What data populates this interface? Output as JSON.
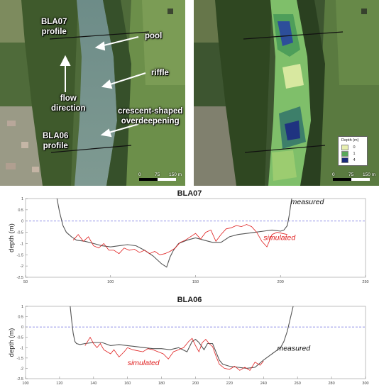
{
  "map_left": {
    "labels": {
      "bla07_profile": "BLA07\nprofile",
      "pool": "pool",
      "riffle": "riffle",
      "flow_direction": "flow\ndirection",
      "crescent": "crescent-shaped\noverdeepening",
      "bla06_profile": "BLA06\nprofile"
    },
    "scale": [
      "0",
      "75",
      "150 m"
    ]
  },
  "map_right": {
    "legend_title": "Depth (m)",
    "legend_items": [
      {
        "label": "0",
        "color": "#e8f0b0"
      },
      {
        "label": "1",
        "color": "#5aa85a"
      },
      {
        "label": "4",
        "color": "#1b2a7a"
      }
    ],
    "scale": [
      "0",
      "75",
      "150 m"
    ]
  },
  "chart_data": [
    {
      "type": "line",
      "title": "BLA07",
      "ylabel": "depth (m)",
      "xlim": [
        50,
        250
      ],
      "ylim": [
        -2.5,
        1
      ],
      "xticks": [
        "50",
        "100",
        "150",
        "200",
        "250"
      ],
      "yticks": [
        "1",
        "0.5",
        "0",
        "-0.5",
        "-1",
        "-1.5",
        "-2",
        "-2.5"
      ],
      "reference_line": 0,
      "series": [
        {
          "name": "measured",
          "color": "#555555",
          "x": [
            68,
            70,
            72,
            74,
            77,
            80,
            85,
            90,
            95,
            100,
            105,
            110,
            115,
            120,
            125,
            130,
            133,
            135,
            137,
            140,
            145,
            150,
            155,
            160,
            165,
            170,
            175,
            180,
            185,
            190,
            195,
            200,
            202,
            204,
            205,
            206,
            207
          ],
          "y": [
            1.2,
            0.4,
            -0.2,
            -0.5,
            -0.7,
            -0.85,
            -0.9,
            -1.0,
            -1.1,
            -1.15,
            -1.1,
            -1.05,
            -1.1,
            -1.3,
            -1.55,
            -1.9,
            -2.05,
            -1.6,
            -1.3,
            -1.0,
            -0.85,
            -0.75,
            -0.85,
            -0.95,
            -0.95,
            -0.7,
            -0.6,
            -0.55,
            -0.5,
            -0.45,
            -0.4,
            -0.45,
            -0.4,
            -0.2,
            0.2,
            0.7,
            1.2
          ]
        },
        {
          "name": "simulated",
          "color": "#e02020",
          "x": [
            78,
            81,
            84,
            87,
            90,
            93,
            96,
            99,
            102,
            105,
            108,
            111,
            114,
            117,
            120,
            123,
            126,
            129,
            132,
            135,
            138,
            141,
            144,
            147,
            150,
            153,
            156,
            159,
            162,
            165,
            168,
            171,
            174,
            177,
            180,
            183,
            186,
            189,
            192,
            195,
            198,
            201,
            204
          ],
          "y": [
            -0.85,
            -0.6,
            -0.9,
            -0.7,
            -1.1,
            -1.2,
            -1.0,
            -1.3,
            -1.3,
            -1.45,
            -1.2,
            -1.3,
            -1.25,
            -1.4,
            -1.3,
            -1.45,
            -1.35,
            -1.5,
            -1.45,
            -1.35,
            -1.2,
            -0.95,
            -0.85,
            -0.7,
            -0.55,
            -0.8,
            -0.5,
            -0.4,
            -0.9,
            -0.6,
            -0.35,
            -0.3,
            -0.2,
            -0.25,
            -0.15,
            -0.25,
            -0.5,
            -0.9,
            -1.15,
            -0.6,
            -0.5,
            -0.55,
            -0.6
          ]
        }
      ],
      "annotations": [
        "measured",
        "simulated"
      ]
    },
    {
      "type": "line",
      "title": "BLA06",
      "ylabel": "depth (m)",
      "xlim": [
        100,
        300
      ],
      "ylim": [
        -2.5,
        1
      ],
      "xticks": [
        "100",
        "120",
        "140",
        "160",
        "180",
        "200",
        "220",
        "240",
        "260",
        "280",
        "300"
      ],
      "yticks": [
        "1",
        "0.5",
        "0",
        "-0.5",
        "-1",
        "-1.5",
        "-2",
        "-2.5"
      ],
      "reference_line": 0,
      "series": [
        {
          "name": "measured",
          "color": "#555555",
          "x": [
            126,
            127,
            128,
            129,
            130,
            132,
            135,
            140,
            145,
            150,
            155,
            160,
            165,
            170,
            175,
            180,
            185,
            190,
            195,
            198,
            200,
            202,
            205,
            207,
            210,
            212,
            214,
            216,
            220,
            225,
            230,
            235,
            240,
            245,
            250,
            252,
            254,
            256,
            258
          ],
          "y": [
            1.2,
            0.4,
            -0.3,
            -0.7,
            -0.8,
            -0.85,
            -0.8,
            -0.75,
            -0.75,
            -0.9,
            -0.85,
            -0.9,
            -0.95,
            -1.0,
            -1.05,
            -1.05,
            -1.1,
            -1.0,
            -1.2,
            -0.7,
            -0.6,
            -0.75,
            -1.1,
            -0.8,
            -0.8,
            -1.2,
            -1.6,
            -1.8,
            -1.9,
            -1.95,
            -2.0,
            -1.95,
            -1.6,
            -1.3,
            -1.0,
            -0.7,
            -0.2,
            0.5,
            1.2
          ]
        },
        {
          "name": "simulated",
          "color": "#e02020",
          "x": [
            135,
            138,
            140,
            142,
            144,
            146,
            148,
            150,
            152,
            155,
            158,
            160,
            163,
            166,
            169,
            172,
            175,
            178,
            181,
            184,
            187,
            190,
            193,
            196,
            198,
            200,
            202,
            204,
            206,
            208,
            210,
            212,
            214,
            217,
            220,
            223,
            226,
            229,
            232,
            235,
            238,
            240
          ],
          "y": [
            -0.9,
            -0.5,
            -0.8,
            -1.0,
            -0.8,
            -1.1,
            -1.2,
            -1.3,
            -1.1,
            -1.45,
            -1.2,
            -1.0,
            -1.1,
            -1.15,
            -1.2,
            -1.05,
            -1.1,
            -1.2,
            -1.3,
            -1.55,
            -1.2,
            -1.1,
            -1.0,
            -0.7,
            -0.55,
            -0.9,
            -1.2,
            -0.75,
            -0.6,
            -0.8,
            -0.95,
            -1.4,
            -1.8,
            -2.0,
            -2.05,
            -1.9,
            -2.1,
            -1.95,
            -2.1,
            -1.7,
            -1.85,
            -1.65
          ]
        }
      ],
      "annotations": [
        "measured",
        "simulated"
      ]
    }
  ]
}
